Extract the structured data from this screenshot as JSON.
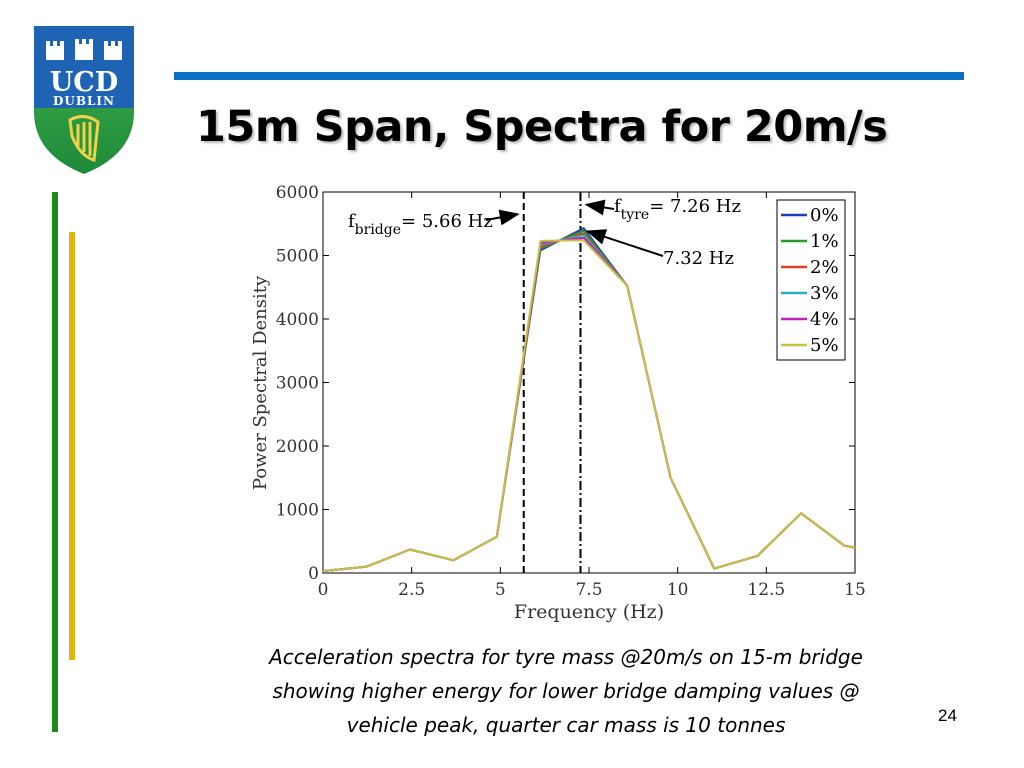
{
  "slide": {
    "title": "15m Span, Spectra for 20m/s",
    "caption_lines": [
      "Acceleration spectra for tyre mass @20m/s on 15-m bridge",
      "showing higher energy for lower bridge damping values @",
      "vehicle peak, quarter car mass is 10 tonnes"
    ],
    "slide_number": "24",
    "logo": {
      "line1": "UCD",
      "line2": "DUBLIN",
      "icon": "harp-icon"
    },
    "colors": {
      "accent_blue": "#0c6fc6",
      "bar_green": "#1a8a1a",
      "bar_gold": "#e2b30c"
    }
  },
  "chart_data": {
    "type": "line",
    "xlabel": "Frequency (Hz)",
    "ylabel": "Power Spectral Density",
    "xlim": [
      0,
      15
    ],
    "ylim": [
      0,
      6000
    ],
    "xticks": [
      "0",
      "2.5",
      "5",
      "7.5",
      "10",
      "12.5",
      "15"
    ],
    "yticks": [
      "0",
      "1000",
      "2000",
      "3000",
      "4000",
      "5000",
      "6000"
    ],
    "grid": false,
    "legend": "top-right",
    "series": [
      {
        "name": "0%",
        "color": "#1f3fb0",
        "x": [
          0,
          1.23,
          2.45,
          3.68,
          4.9,
          6.13,
          7.35,
          8.58,
          9.8,
          11.03,
          12.25,
          13.48,
          14.7,
          15
        ],
        "y": [
          30,
          100,
          370,
          200,
          570,
          5080,
          5430,
          4520,
          1500,
          70,
          270,
          940,
          430,
          400
        ]
      },
      {
        "name": "1%",
        "color": "#2a9a2a",
        "x": [
          0,
          1.23,
          2.45,
          3.68,
          4.9,
          6.13,
          7.35,
          8.58,
          9.8,
          11.03,
          12.25,
          13.48,
          14.7,
          15
        ],
        "y": [
          30,
          100,
          370,
          200,
          570,
          5110,
          5390,
          4520,
          1500,
          70,
          270,
          940,
          430,
          400
        ]
      },
      {
        "name": "2%",
        "color": "#e04020",
        "x": [
          0,
          1.23,
          2.45,
          3.68,
          4.9,
          6.13,
          7.35,
          8.58,
          9.8,
          11.03,
          12.25,
          13.48,
          14.7,
          15
        ],
        "y": [
          30,
          100,
          370,
          200,
          570,
          5140,
          5350,
          4520,
          1500,
          70,
          270,
          940,
          430,
          400
        ]
      },
      {
        "name": "3%",
        "color": "#2ab0b8",
        "x": [
          0,
          1.23,
          2.45,
          3.68,
          4.9,
          6.13,
          7.35,
          8.58,
          9.8,
          11.03,
          12.25,
          13.48,
          14.7,
          15
        ],
        "y": [
          30,
          100,
          370,
          200,
          570,
          5170,
          5320,
          4520,
          1500,
          70,
          270,
          940,
          430,
          400
        ]
      },
      {
        "name": "4%",
        "color": "#c020c0",
        "x": [
          0,
          1.23,
          2.45,
          3.68,
          4.9,
          6.13,
          7.35,
          8.58,
          9.8,
          11.03,
          12.25,
          13.48,
          14.7,
          15
        ],
        "y": [
          30,
          100,
          370,
          200,
          570,
          5200,
          5280,
          4520,
          1500,
          70,
          270,
          940,
          430,
          400
        ]
      },
      {
        "name": "5%",
        "color": "#c8c040",
        "x": [
          0,
          1.23,
          2.45,
          3.68,
          4.9,
          6.13,
          7.35,
          8.58,
          9.8,
          11.03,
          12.25,
          13.48,
          14.7,
          15
        ],
        "y": [
          30,
          100,
          370,
          200,
          570,
          5230,
          5240,
          4520,
          1500,
          70,
          270,
          940,
          430,
          400
        ]
      }
    ],
    "vlines": [
      {
        "x": 5.66,
        "style": "dashed"
      },
      {
        "x": 7.26,
        "style": "dash-dot"
      }
    ],
    "annotations": {
      "bridge": {
        "f": "f",
        "sub": "bridge",
        "rest": "= 5.66 Hz",
        "x": 5.66,
        "y": 5650
      },
      "tyre": {
        "f": "f",
        "sub": "tyre",
        "rest": "= 7.26 Hz",
        "x": 7.26,
        "y": 5800
      },
      "peak": {
        "text": "7.32 Hz",
        "x": 7.32,
        "y": 5430
      }
    }
  }
}
